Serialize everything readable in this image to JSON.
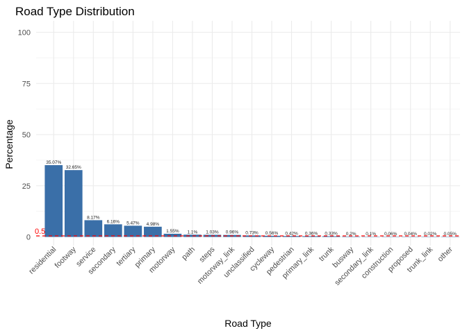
{
  "chart_data": {
    "type": "bar",
    "title": "Road Type Distribution",
    "xlabel": "Road Type",
    "ylabel": "Percentage",
    "ylim": [
      0,
      100
    ],
    "yticks": [
      0,
      25,
      50,
      75,
      100
    ],
    "grid": true,
    "categories": [
      "residential",
      "footway",
      "service",
      "secondary",
      "tertiary",
      "primary",
      "motorway",
      "path",
      "steps",
      "motorway_link",
      "unclassified",
      "cycleway",
      "pedestrian",
      "primary_link",
      "trunk",
      "busway",
      "secondary_link",
      "construction",
      "proposed",
      "trunk_link",
      "other"
    ],
    "values": [
      35.07,
      32.65,
      8.17,
      6.16,
      5.47,
      4.98,
      1.55,
      1.1,
      1.03,
      0.96,
      0.73,
      0.56,
      0.42,
      0.36,
      0.33,
      0.2,
      0.1,
      0.06,
      0.04,
      0.02,
      0.05
    ],
    "data_labels": [
      "35.07%",
      "32.65%",
      "8.17%",
      "6.16%",
      "5.47%",
      "4.98%",
      "1.55%",
      "1.1%",
      "1.03%",
      "0.96%",
      "0.73%",
      "0.56%",
      "0.42%",
      "0.36%",
      "0.33%",
      "0.2%",
      "0.1%",
      "0.06%",
      "0.04%",
      "0.02%",
      "0.05%"
    ],
    "reference_line": {
      "value": 0.5,
      "label": "0.5",
      "color": "#ff0000",
      "style": "dashed"
    },
    "bar_color": "#3a6fa8",
    "grid_color": "#ebebeb"
  }
}
